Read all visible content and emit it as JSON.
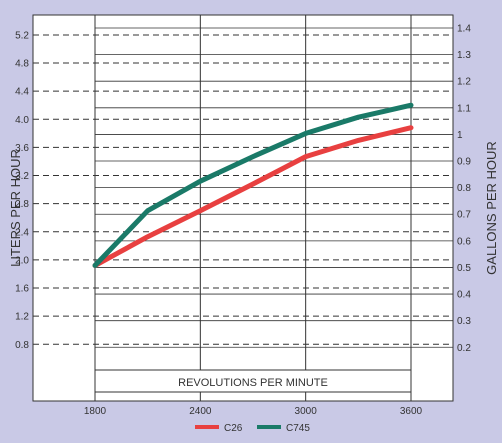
{
  "chart_data": {
    "type": "line",
    "title": "",
    "xlabel": "REVOLUTIONS PER MINUTE",
    "ylabel_left": "LITERS PER HOUR",
    "ylabel_right": "GALLONS PER HOUR",
    "x_ticks": [
      1800,
      2400,
      3000,
      3600
    ],
    "xlim": [
      1800,
      3600
    ],
    "y_left_ticks": [
      "0.8",
      "1.2",
      "1.6",
      "2.0",
      "2.4",
      "2.8",
      "3.2",
      "3.6",
      "4.0",
      "4.4",
      "4.8",
      "5.2"
    ],
    "y_right_ticks": [
      "0.2",
      "0.3",
      "0.4",
      "0.5",
      "0.6",
      "0.7",
      "0.8",
      "0.9",
      "1",
      "1.1",
      "1.2",
      "1.3",
      "1.4"
    ],
    "ylim_left": [
      0,
      5.6
    ],
    "liters_per_gallon": 3.785,
    "legend_position": "bottom-center",
    "series": [
      {
        "name": "C26",
        "color": "#e84040",
        "x": [
          1800,
          2100,
          2400,
          2700,
          3000,
          3300,
          3600
        ],
        "y": [
          1.92,
          2.33,
          2.7,
          3.08,
          3.47,
          3.7,
          3.88
        ]
      },
      {
        "name": "C745",
        "color": "#1a7a68",
        "x": [
          1800,
          2100,
          2400,
          2700,
          3000,
          3300,
          3600
        ],
        "y": [
          1.92,
          2.7,
          3.12,
          3.47,
          3.8,
          4.03,
          4.2
        ]
      }
    ]
  }
}
